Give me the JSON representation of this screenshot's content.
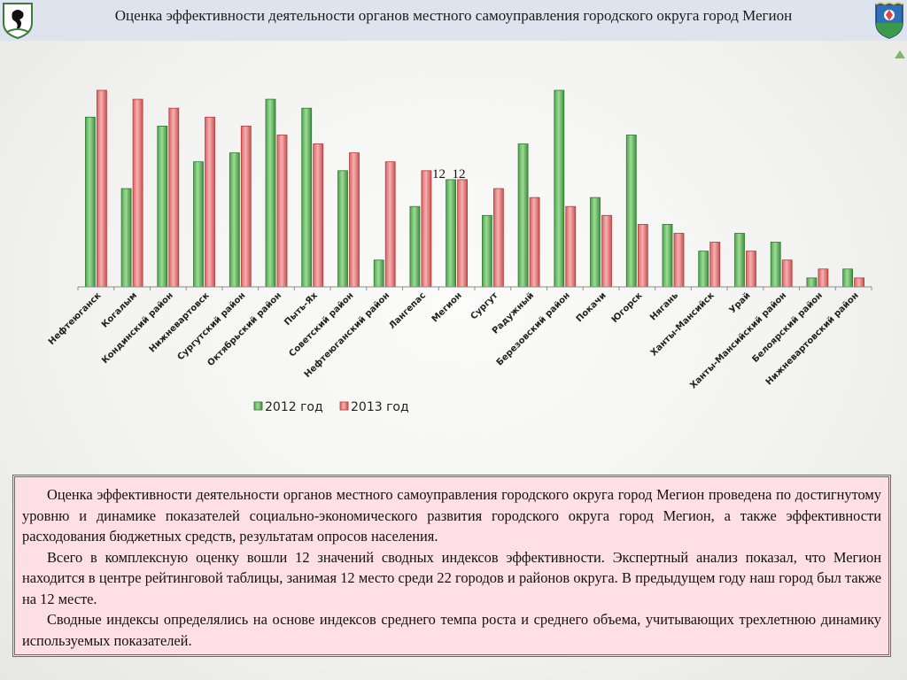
{
  "header": {
    "title": "Оценка эффективности деятельности органов местного самоуправления городского округа город Мегион"
  },
  "colors": {
    "series_2012": "#6cbf6c",
    "series_2012_dark": "#2f7a2f",
    "series_2013": "#ef8a8a",
    "series_2013_dark": "#b43a3a",
    "header_bg": "#dde4ee",
    "textbox_bg": "#fddfe5"
  },
  "chart_data": {
    "type": "bar",
    "categories": [
      "Нефтеюганск",
      "Когалым",
      "Кондинский район",
      "Нижневартовск",
      "Сургутский район",
      "Октябрьский район",
      "Пыть-Ях",
      "Советский район",
      "Нефтеюганский район",
      "Лангепас",
      "Мегион",
      "Сургут",
      "Радужный",
      "Березовский район",
      "Покачи",
      "Югорск",
      "Нягань",
      "Ханты-Мансийск",
      "Урай",
      "Ханты-Мансийский район",
      "Белоярский район",
      "Нижневартовский район"
    ],
    "series": [
      {
        "name": "2012 год",
        "values": [
          19,
          11,
          18,
          14,
          15,
          21,
          20,
          13,
          3,
          9,
          12,
          8,
          16,
          22,
          10,
          17,
          7,
          4,
          6,
          5,
          1,
          2
        ]
      },
      {
        "name": "2013 год",
        "values": [
          22,
          21,
          20,
          19,
          18,
          17,
          16,
          15,
          14,
          13,
          12,
          11,
          10,
          9,
          8,
          7,
          6,
          5,
          4,
          3,
          2,
          1
        ]
      }
    ],
    "annotation": "12  12",
    "ylim": [
      0,
      22
    ],
    "grid": false,
    "legend": "bottom"
  },
  "text": {
    "p1": "Оценка эффективности деятельности органов местного самоуправления городского округа город Мегион проведена по достигнутому уровню и динамике показателей социально-экономического развития городского округа город Мегион, а также эффективности расходования бюджетных средств, результатам опросов населения.",
    "p2": "Всего в комплексную оценку вошли 12 значений сводных индексов эффективности. Экспертный анализ показал, что Мегион находится в центре рейтинговой таблицы, занимая 12 место среди 22 городов и районов округа. В предыдущем году наш город был также на 12 месте.",
    "p3": "Сводные индексы определялись на основе индексов среднего темпа роста и среднего объема, учитывающих трехлетнюю динамику используемых показателей."
  }
}
